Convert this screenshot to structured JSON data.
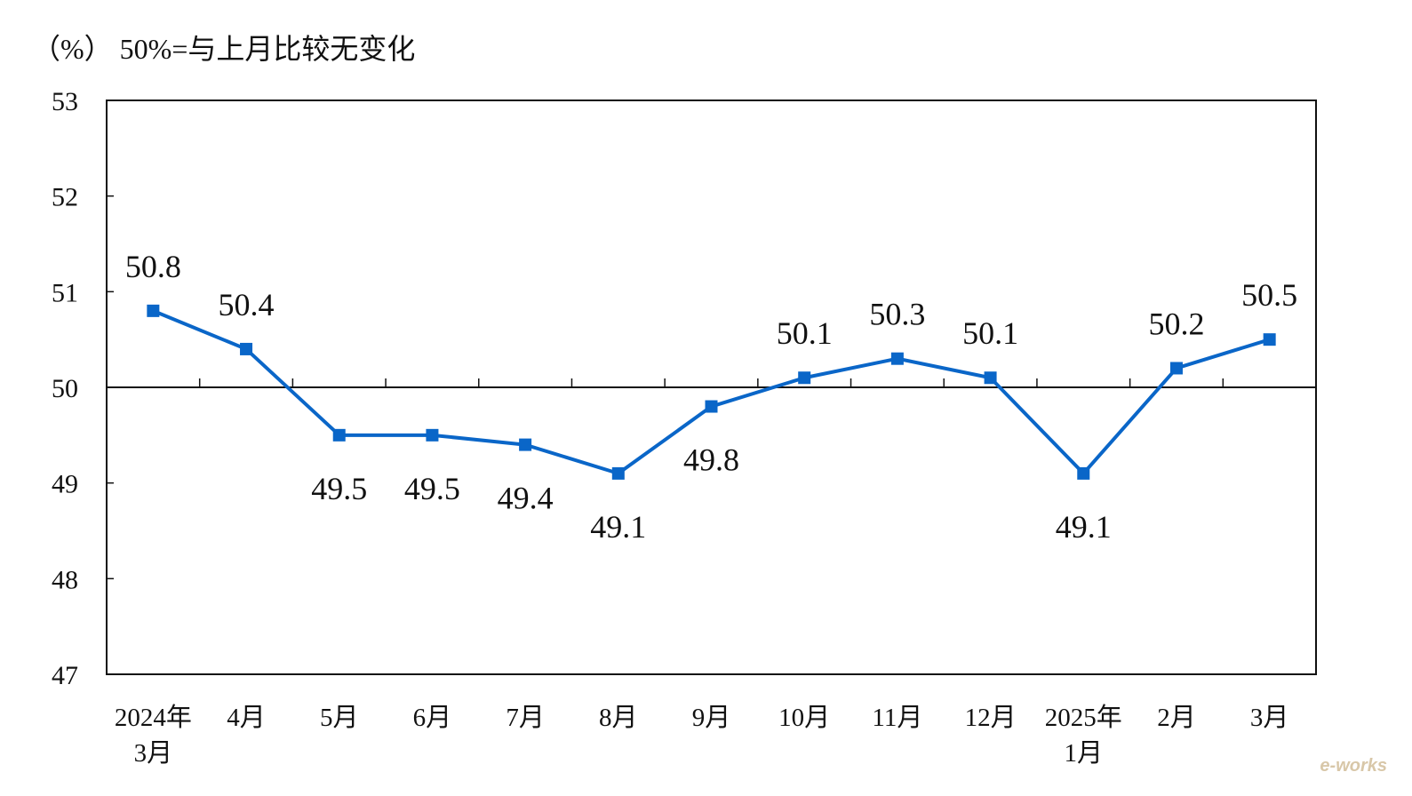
{
  "header": {
    "unit_note": "（%） 50%=与上月比较无变化"
  },
  "watermark": "e-works",
  "chart_data": {
    "type": "line",
    "title": "",
    "xlabel": "",
    "ylabel": "",
    "ylim": [
      47,
      53
    ],
    "yticks": [
      47,
      48,
      49,
      50,
      51,
      52,
      53
    ],
    "reference_line": 50,
    "grid": false,
    "categories": [
      [
        "2024年",
        "3月"
      ],
      [
        "4月"
      ],
      [
        "5月"
      ],
      [
        "6月"
      ],
      [
        "7月"
      ],
      [
        "8月"
      ],
      [
        "9月"
      ],
      [
        "10月"
      ],
      [
        "11月"
      ],
      [
        "12月"
      ],
      [
        "2025年",
        "1月"
      ],
      [
        "2月"
      ],
      [
        "3月"
      ]
    ],
    "series": [
      {
        "color": "#0a66c8",
        "marker": "square",
        "values": [
          50.8,
          50.4,
          49.5,
          49.5,
          49.4,
          49.1,
          49.8,
          50.1,
          50.3,
          50.1,
          49.1,
          50.2,
          50.5
        ],
        "labels": [
          "50.8",
          "50.4",
          "49.5",
          "49.5",
          "49.4",
          "49.1",
          "49.8",
          "50.1",
          "50.3",
          "50.1",
          "49.1",
          "50.2",
          "50.5"
        ],
        "label_positions": [
          "above",
          "above",
          "below",
          "below",
          "below",
          "below",
          "below",
          "above",
          "above",
          "above",
          "below",
          "above",
          "above"
        ]
      }
    ]
  }
}
